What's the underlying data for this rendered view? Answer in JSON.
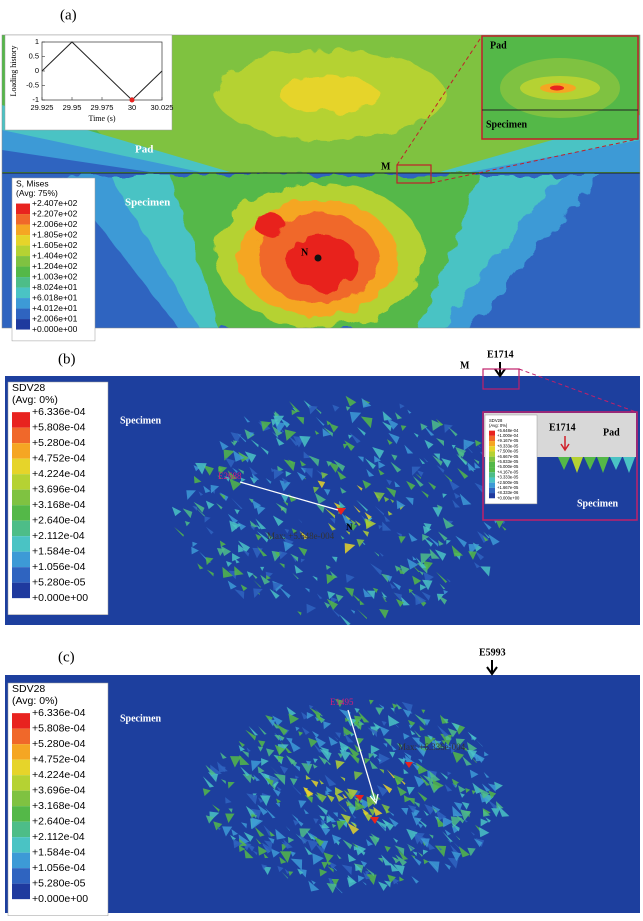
{
  "chart_data": {
    "type": "line",
    "x": [
      29.925,
      29.95,
      30,
      30.025
    ],
    "values": [
      0,
      1,
      -1,
      0
    ],
    "color": "#222222",
    "marker_color": "#e8231f",
    "xlim": [
      29.925,
      30.025
    ],
    "xticks": [
      29.925,
      29.95,
      29.975,
      30,
      30.025
    ],
    "ylim": [
      -1,
      1
    ],
    "yticks": [
      -1,
      -0.5,
      0,
      0.5,
      1
    ],
    "xlabel": "Time (s)",
    "ylabel": "Loading history"
  },
  "panel_a": {
    "label": "(a)",
    "pad": "Pad",
    "specimen": "Specimen",
    "point_m": "M",
    "point_n": "N",
    "zoom": {
      "pad": "Pad",
      "specimen": "Specimen"
    },
    "legend": {
      "title": [
        "S, Mises",
        "(Avg: 75%)"
      ],
      "labels": [
        "+2.407e+02",
        "+2.207e+02",
        "+2.006e+02",
        "+1.805e+02",
        "+1.605e+02",
        "+1.404e+02",
        "+1.204e+02",
        "+1.003e+02",
        "+8.024e+01",
        "+6.018e+01",
        "+4.012e+01",
        "+2.006e+01",
        "+0.000e+00"
      ]
    }
  },
  "panel_b": {
    "label": "(b)",
    "specimen": "Specimen",
    "element": "E2688",
    "point_n": "N",
    "max": "Max: +5.648e-004",
    "point_m": "M",
    "element_top": "E1714",
    "legend": {
      "title": [
        "SDV28",
        "(Avg: 0%)"
      ],
      "labels": [
        "+6.336e-04",
        "+5.808e-04",
        "+5.280e-04",
        "+4.752e-04",
        "+4.224e-04",
        "+3.696e-04",
        "+3.168e-04",
        "+2.640e-04",
        "+2.112e-04",
        "+1.584e-04",
        "+1.056e-04",
        "+5.280e-05",
        "+0.000e+00"
      ]
    },
    "zoom": {
      "element": "E1714",
      "pad": "Pad",
      "specimen": "Specimen",
      "legend": {
        "title": [
          "SDV28",
          "(Avg: 0%)"
        ],
        "labels": [
          "+5.648e-04",
          "+1.000e-04",
          "+9.167e-05",
          "+8.333e-05",
          "+7.500e-05",
          "+6.667e-05",
          "+5.833e-05",
          "+5.000e-05",
          "+4.167e-05",
          "+3.333e-05",
          "+2.500e-05",
          "+1.667e-05",
          "+8.333e-06",
          "+0.000e+00"
        ]
      }
    }
  },
  "panel_c": {
    "label": "(c)",
    "specimen": "Specimen",
    "element": "E1495",
    "max": "Max: +6.336e-004",
    "element_top": "E5993",
    "legend": {
      "title": [
        "SDV28",
        "(Avg: 0%)"
      ],
      "labels": [
        "+6.336e-04",
        "+5.808e-04",
        "+5.280e-04",
        "+4.752e-04",
        "+4.224e-04",
        "+3.696e-04",
        "+3.168e-04",
        "+2.640e-04",
        "+2.112e-04",
        "+1.584e-04",
        "+1.056e-04",
        "+5.280e-05",
        "+0.000e+00"
      ]
    }
  },
  "palette": [
    "#e8231f",
    "#f0682a",
    "#f5a623",
    "#e6d42a",
    "#b5d233",
    "#7fc241",
    "#54b848",
    "#4dbd88",
    "#4ac3c4",
    "#3d9ad6",
    "#2f64c0",
    "#1f3a9e"
  ]
}
